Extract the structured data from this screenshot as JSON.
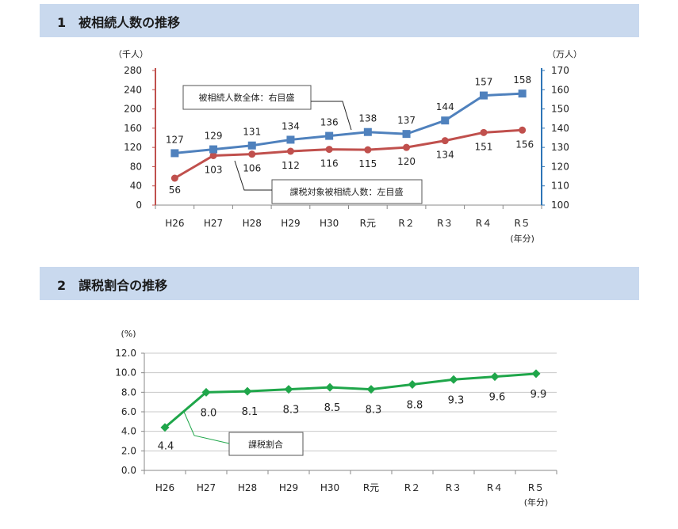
{
  "sections": [
    {
      "title": "1　被相続人数の推移"
    },
    {
      "title": "2　課税割合の推移"
    }
  ],
  "chart_data": [
    {
      "type": "line",
      "categories": [
        "H26",
        "H27",
        "H28",
        "H29",
        "H30",
        "R元",
        "R２",
        "R３",
        "R４",
        "R５"
      ],
      "x_unit": "(年分)",
      "y_left_unit": "（千人）",
      "y_right_unit": "（万人）",
      "y_left_ticks": [
        "0",
        "40",
        "80",
        "120",
        "160",
        "200",
        "240",
        "280"
      ],
      "y_left_range": [
        0,
        280
      ],
      "y_right_ticks": [
        "100",
        "110",
        "120",
        "130",
        "140",
        "150",
        "160",
        "170"
      ],
      "y_right_range": [
        100,
        170
      ],
      "grid": false,
      "series": [
        {
          "name": "被相続人数全体：右目盛",
          "axis": "right",
          "color": "#4f81bd",
          "marker": "square",
          "values": [
            127,
            129,
            131,
            134,
            136,
            138,
            137,
            144,
            157,
            158
          ],
          "labels": [
            "127",
            "129",
            "131",
            "134",
            "136",
            "138",
            "137",
            "144",
            "157",
            "158"
          ]
        },
        {
          "name": "課税対象被相続人数：左目盛",
          "axis": "left",
          "color": "#c0504d",
          "marker": "circle",
          "values": [
            56,
            103,
            106,
            112,
            116,
            115,
            120,
            134,
            151,
            156
          ],
          "labels": [
            "56",
            "103",
            "106",
            "112",
            "116",
            "115",
            "120",
            "134",
            "151",
            "156"
          ]
        }
      ]
    },
    {
      "type": "line",
      "categories": [
        "H26",
        "H27",
        "H28",
        "H29",
        "H30",
        "R元",
        "R２",
        "R３",
        "R４",
        "R５"
      ],
      "x_unit": "(年分)",
      "y_unit": "(%)",
      "y_ticks": [
        "0.0",
        "2.0",
        "4.0",
        "6.0",
        "8.0",
        "10.0",
        "12.0"
      ],
      "y_range": [
        0,
        12
      ],
      "grid": true,
      "series": [
        {
          "name": "課税割合",
          "color": "#1fa64a",
          "marker": "diamond",
          "values": [
            4.4,
            8.0,
            8.1,
            8.3,
            8.5,
            8.3,
            8.8,
            9.3,
            9.6,
            9.9
          ],
          "labels": [
            "4.4",
            "8.0",
            "8.1",
            "8.3",
            "8.5",
            "8.3",
            "8.8",
            "9.3",
            "9.6",
            "9.9"
          ]
        }
      ]
    }
  ]
}
